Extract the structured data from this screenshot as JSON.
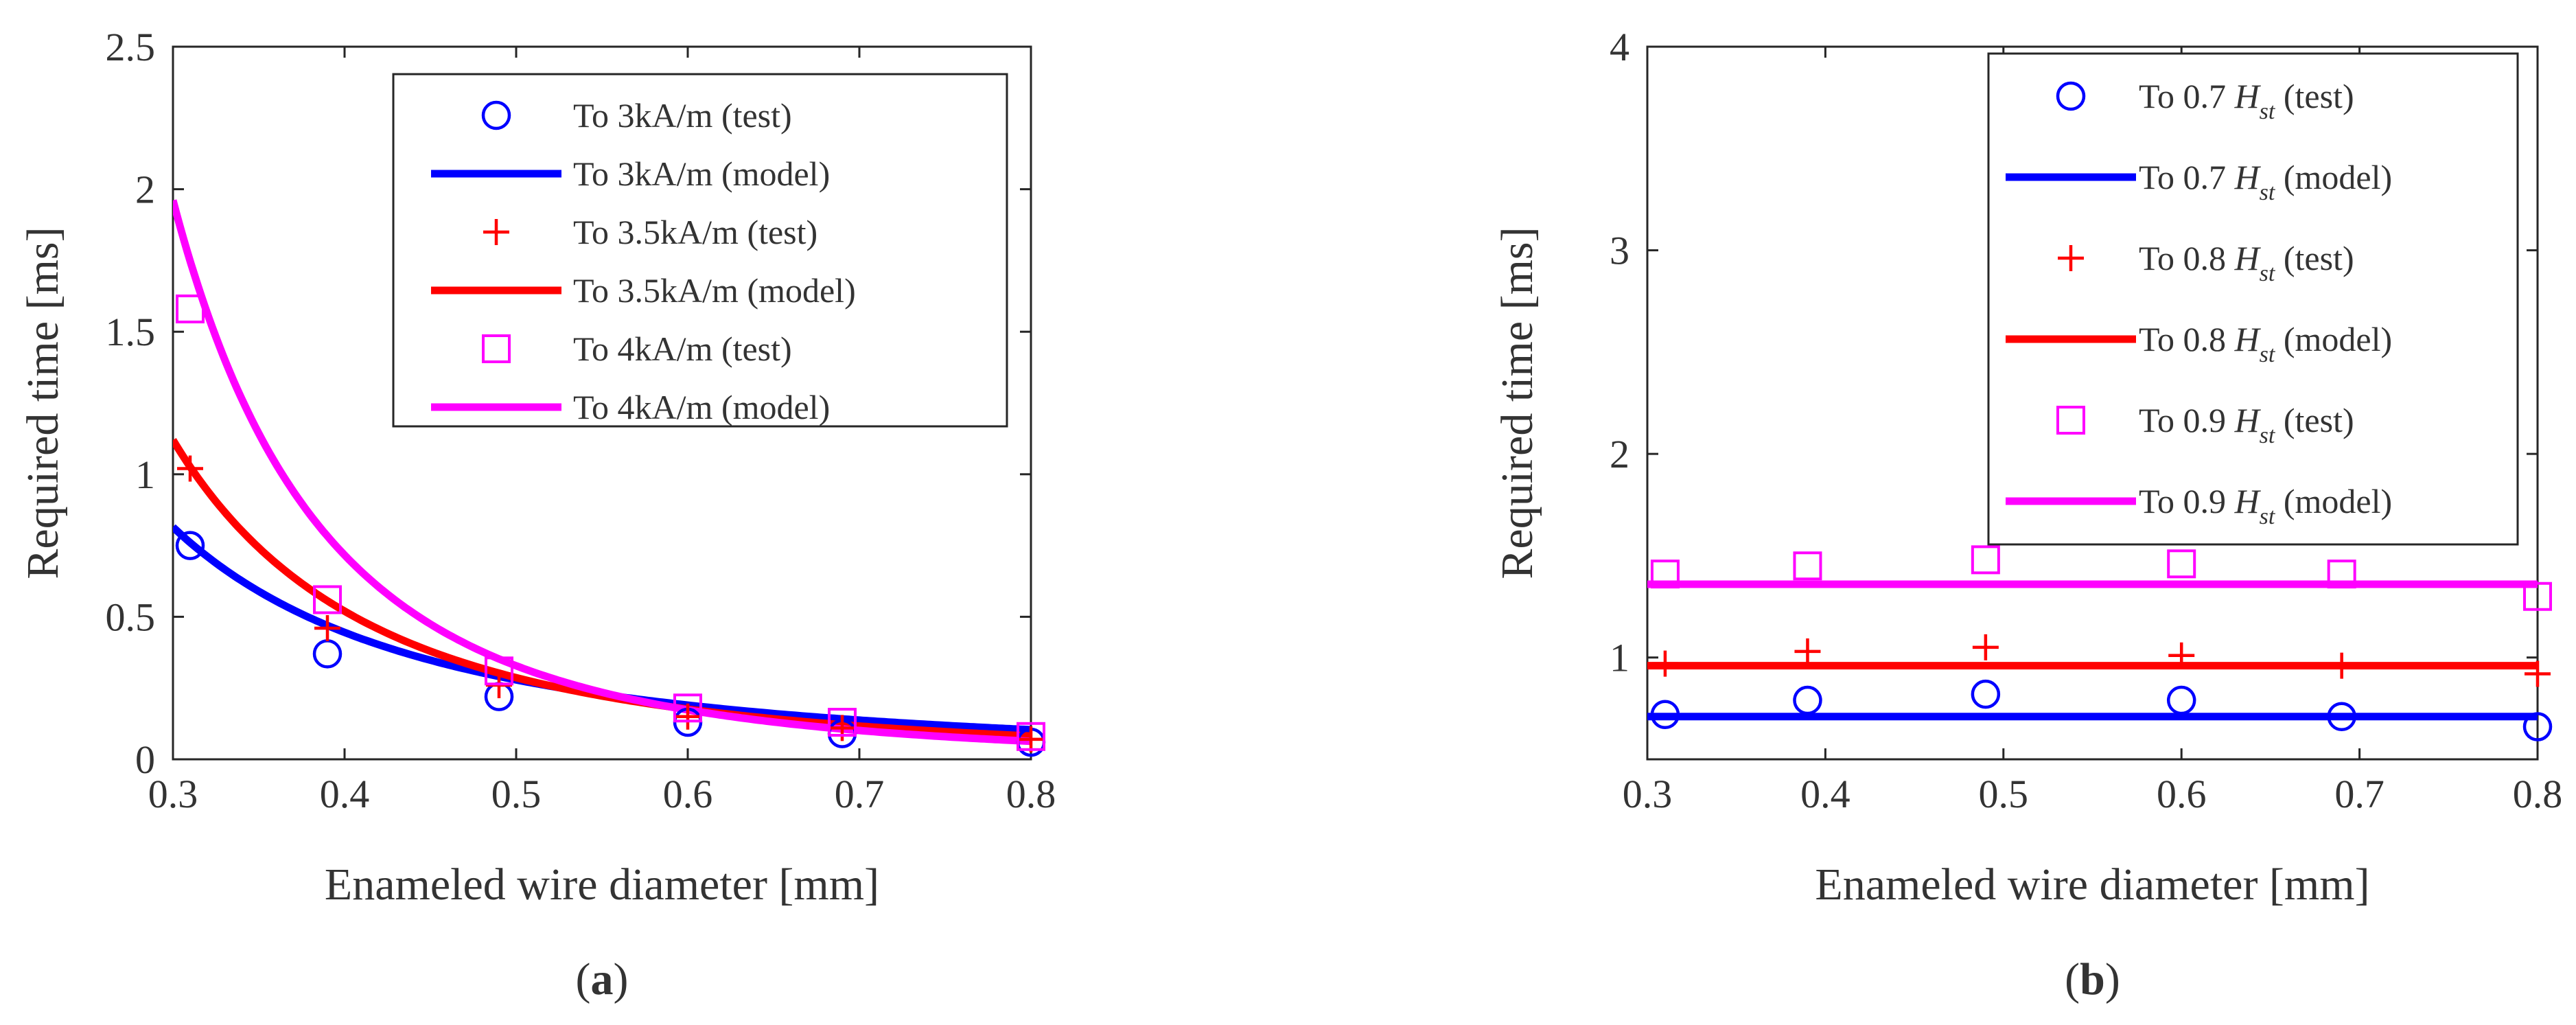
{
  "chart_data": [
    {
      "type": "line",
      "panel_label": "(a)",
      "panel_letter": "a",
      "xlabel": "Enameled wire diameter [mm]",
      "ylabel": "Required time [ms]",
      "xlim": [
        0.3,
        0.8
      ],
      "ylim": [
        0,
        2.5
      ],
      "xticks": [
        "0.3",
        "0.4",
        "0.5",
        "0.6",
        "0.7",
        "0.8"
      ],
      "yticks": [
        "0",
        "0.5",
        "1",
        "1.5",
        "2",
        "2.5"
      ],
      "legend_position": "top-right",
      "series": [
        {
          "name": "To 3kA/m (test)",
          "kind": "marker",
          "marker": "circle",
          "color": "#0000ff",
          "x": [
            0.31,
            0.39,
            0.49,
            0.6,
            0.69,
            0.8
          ],
          "y": [
            0.75,
            0.37,
            0.22,
            0.13,
            0.09,
            0.06
          ]
        },
        {
          "name": "To 3kA/m (model)",
          "kind": "line",
          "color": "#0000ff",
          "a": 0.065,
          "b": -2.1,
          "x_start": 0.3
        },
        {
          "name": "To 3.5kA/m (test)",
          "kind": "marker",
          "marker": "plus",
          "color": "#ff0000",
          "x": [
            0.31,
            0.39,
            0.49,
            0.6,
            0.69,
            0.8
          ],
          "y": [
            1.02,
            0.46,
            0.26,
            0.15,
            0.11,
            0.07
          ]
        },
        {
          "name": "To 3.5kA/m (model)",
          "kind": "line",
          "color": "#ff0000",
          "a": 0.045,
          "b": -2.67,
          "x_start": 0.3
        },
        {
          "name": "To 4kA/m (test)",
          "kind": "marker",
          "marker": "square",
          "color": "#ff00ff",
          "x": [
            0.31,
            0.39,
            0.49,
            0.6,
            0.69,
            0.8
          ],
          "y": [
            1.58,
            0.56,
            0.31,
            0.18,
            0.13,
            0.08
          ]
        },
        {
          "name": "To 4kA/m (model)",
          "kind": "line",
          "color": "#ff00ff",
          "a": 0.029,
          "b": -3.5,
          "x_start": 0.3
        }
      ]
    },
    {
      "type": "line",
      "panel_label": "(b)",
      "panel_letter": "b",
      "xlabel": "Enameled wire diameter [mm]",
      "ylabel": "Required time [ms]",
      "xlim": [
        0.3,
        0.8
      ],
      "ylim": [
        0.5,
        4
      ],
      "xticks": [
        "0.3",
        "0.4",
        "0.5",
        "0.6",
        "0.7",
        "0.8"
      ],
      "yticks": [
        "1",
        "2",
        "3",
        "4"
      ],
      "legend_position": "top-right",
      "series": [
        {
          "name": "To 0.7 Hst (test)",
          "label_prefix": "To 0.7 ",
          "label_var": "H",
          "label_sub": "st",
          "label_suffix": " (test)",
          "kind": "marker",
          "marker": "circle",
          "color": "#0000ff",
          "x": [
            0.31,
            0.39,
            0.49,
            0.6,
            0.69,
            0.8
          ],
          "y": [
            0.72,
            0.79,
            0.82,
            0.79,
            0.71,
            0.66
          ]
        },
        {
          "name": "To 0.7 Hst (model)",
          "label_prefix": "To 0.7 ",
          "label_var": "H",
          "label_sub": "st",
          "label_suffix": " (model)",
          "kind": "hline",
          "color": "#0000ff",
          "value": 0.71
        },
        {
          "name": "To 0.8 Hst (test)",
          "label_prefix": "To 0.8 ",
          "label_var": "H",
          "label_sub": "st",
          "label_suffix": " (test)",
          "kind": "marker",
          "marker": "plus",
          "color": "#ff0000",
          "x": [
            0.31,
            0.39,
            0.49,
            0.6,
            0.69,
            0.8
          ],
          "y": [
            0.97,
            1.03,
            1.05,
            1.01,
            0.96,
            0.92
          ]
        },
        {
          "name": "To 0.8 Hst (model)",
          "label_prefix": "To 0.8 ",
          "label_var": "H",
          "label_sub": "st",
          "label_suffix": " (model)",
          "kind": "hline",
          "color": "#ff0000",
          "value": 0.96
        },
        {
          "name": "To 0.9 Hst (test)",
          "label_prefix": "To 0.9 ",
          "label_var": "H",
          "label_sub": "st",
          "label_suffix": " (test)",
          "kind": "marker",
          "marker": "square",
          "color": "#ff00ff",
          "x": [
            0.31,
            0.39,
            0.49,
            0.6,
            0.69,
            0.8
          ],
          "y": [
            1.41,
            1.45,
            1.48,
            1.46,
            1.41,
            1.3
          ]
        },
        {
          "name": "To 0.9 Hst (model)",
          "label_prefix": "To 0.9 ",
          "label_var": "H",
          "label_sub": "st",
          "label_suffix": " (model)",
          "kind": "hline",
          "color": "#ff00ff",
          "value": 1.36
        }
      ]
    }
  ]
}
